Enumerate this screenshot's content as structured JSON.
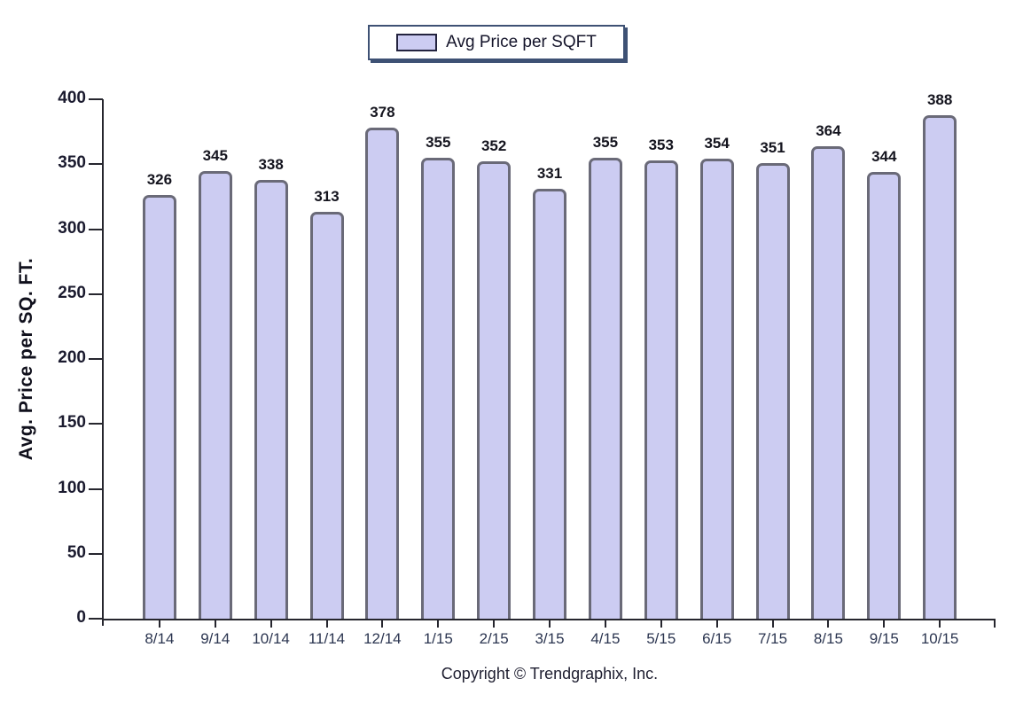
{
  "chart_data": {
    "type": "bar",
    "title": "",
    "legend_label": "Avg Price per SQFT",
    "legend_position": "top-center",
    "categories": [
      "8/14",
      "9/14",
      "10/14",
      "11/14",
      "12/14",
      "1/15",
      "2/15",
      "3/15",
      "4/15",
      "5/15",
      "6/15",
      "7/15",
      "8/15",
      "9/15",
      "10/15"
    ],
    "values": [
      326,
      345,
      338,
      313,
      378,
      355,
      352,
      331,
      355,
      353,
      354,
      351,
      364,
      344,
      388
    ],
    "xlabel": "",
    "ylabel": "Avg. Price per SQ. FT.",
    "ylim": [
      0,
      400
    ],
    "ytick_step": 50,
    "yticks": [
      0,
      50,
      100,
      150,
      200,
      250,
      300,
      350,
      400
    ],
    "grid": false,
    "colors": {
      "bar_fill": "#ccccf2",
      "bar_border": "#6a6a78",
      "axis": "#26262e",
      "legend_border": "#3e5174"
    }
  },
  "footer": {
    "copyright": "Copyright © Trendgraphix, Inc."
  }
}
